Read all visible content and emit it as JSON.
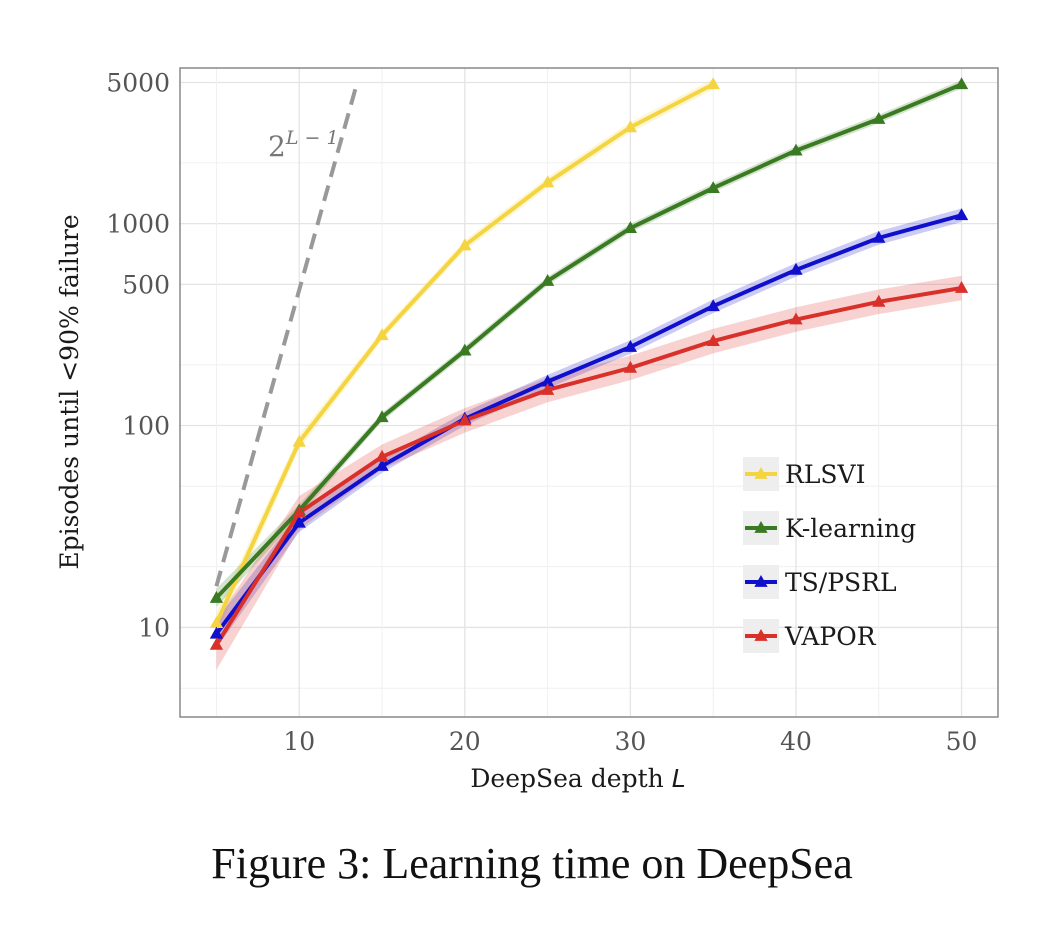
{
  "caption": "Figure 3: Learning time on DeepSea",
  "chart_data": {
    "type": "line",
    "xlabel": "DeepSea depth L",
    "ylabel": "Episodes until <90% failure",
    "yscale": "log",
    "xlim": [
      2.8,
      52.2
    ],
    "ylim": [
      3.6,
      5900
    ],
    "xticks": [
      10,
      20,
      30,
      40,
      50
    ],
    "yticks": [
      10,
      100,
      500,
      1000,
      5000
    ],
    "grid": true,
    "legend_position": "lower-right",
    "reference_line": {
      "label": "2^{L-1}",
      "label_base": "2",
      "label_exponent": "L − 1",
      "x": [
        5,
        13.5
      ],
      "y": [
        16,
        5000
      ],
      "color": "#999999",
      "style": "dashed"
    },
    "series": [
      {
        "name": "RLSVI",
        "color": "#f5d442",
        "x": [
          5,
          10,
          15,
          20,
          25,
          30,
          35
        ],
        "y": [
          10.5,
          83,
          280,
          780,
          1600,
          3000,
          4900
        ],
        "band": 0.06
      },
      {
        "name": "K-learning",
        "color": "#3a7a22",
        "x": [
          5,
          10,
          15,
          20,
          25,
          30,
          35,
          40,
          45,
          50
        ],
        "y": [
          14,
          38,
          110,
          235,
          520,
          950,
          1500,
          2300,
          3300,
          4900
        ],
        "band": 0.05
      },
      {
        "name": "TS/PSRL",
        "color": "#1010cc",
        "x": [
          5,
          10,
          15,
          20,
          25,
          30,
          35,
          40,
          45,
          50
        ],
        "y": [
          9.3,
          33,
          63,
          108,
          165,
          245,
          390,
          590,
          850,
          1100
        ],
        "band": 0.08
      },
      {
        "name": "VAPOR",
        "color": "#d9302a",
        "x": [
          5,
          10,
          15,
          20,
          25,
          30,
          35,
          40,
          45,
          50
        ],
        "y": [
          8.2,
          37,
          70,
          106,
          150,
          193,
          262,
          335,
          410,
          480
        ],
        "band": 0.15
      }
    ]
  }
}
